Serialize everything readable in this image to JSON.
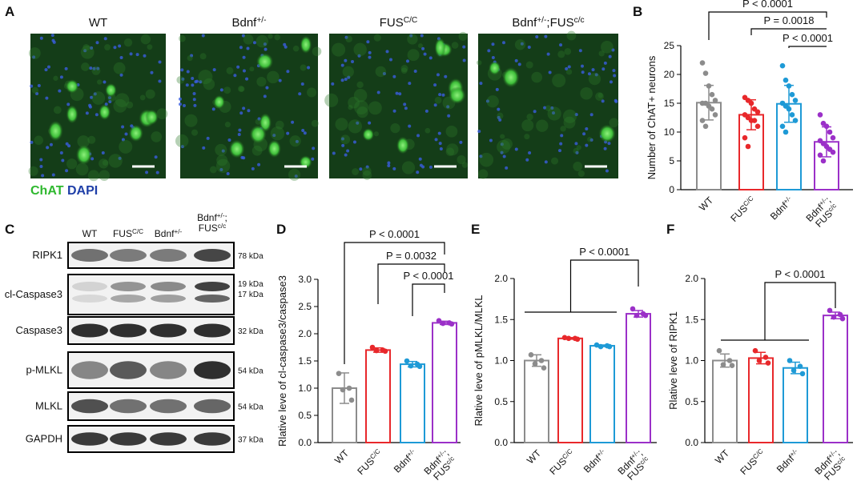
{
  "panels": {
    "letters": [
      "A",
      "B",
      "C",
      "D",
      "E",
      "F"
    ]
  },
  "micrographs": {
    "titles": [
      "WT",
      "Bdnf+/-",
      "FUSC/C",
      "Bdnf+/-;FUSc/c"
    ],
    "legend": [
      "ChAT",
      "DAPI"
    ]
  },
  "blot": {
    "columns": [
      "WT",
      "FUSC/C",
      "Bdnf+/-",
      "Bdnf+/-;FUSc/c"
    ],
    "rows": [
      {
        "name": "RIPK1",
        "sizes": [
          "78 kDa"
        ]
      },
      {
        "name": "cl-Caspase3",
        "sizes": [
          "19 kDa",
          "17 kDa"
        ]
      },
      {
        "name": "Caspase3",
        "sizes": [
          "32 kDa"
        ]
      },
      {
        "name": "p-MLKL",
        "sizes": [
          "54 kDa"
        ]
      },
      {
        "name": "MLKL",
        "sizes": [
          "54 kDa"
        ]
      },
      {
        "name": "GAPDH",
        "sizes": [
          "37 kDa"
        ]
      }
    ]
  },
  "chart_data": [
    {
      "type": "bar",
      "y_label": "Number of ChAT+ neurons",
      "categories": [
        "WT",
        "FUSC/C",
        "Bdnf+/-",
        "Bdnf+/-;FUSc/c"
      ],
      "colors": [
        "#8c8c8c",
        "#e8282b",
        "#1e9ad6",
        "#9b30c8"
      ],
      "means": [
        15.1,
        13.0,
        14.9,
        8.3
      ],
      "errors": [
        3.0,
        2.6,
        3.2,
        2.6
      ],
      "points": [
        [
          22,
          20.2,
          18,
          16.5,
          15.5,
          15,
          15,
          14.5,
          14,
          13,
          12,
          11
        ],
        [
          16,
          15.5,
          15,
          14,
          13.5,
          13,
          12.5,
          12,
          12,
          11,
          9,
          7.5
        ],
        [
          21.5,
          19,
          18,
          16.5,
          15.5,
          15,
          14.5,
          14,
          13,
          12,
          11,
          10
        ],
        [
          13,
          11.5,
          11,
          10,
          9,
          8.5,
          8,
          7.5,
          7,
          6.5,
          6,
          5
        ]
      ],
      "ylim": [
        0,
        25
      ],
      "yticks": [
        0,
        5,
        10,
        15,
        20,
        25
      ],
      "annotations": [
        "P < 0.0001",
        "P = 0.0018",
        "P < 0.0001"
      ]
    },
    {
      "type": "bar",
      "y_label": "Rlative leve of cl-caspase3/caspase3",
      "categories": [
        "WT",
        "FUSC/C",
        "Bdnf+/-",
        "Bdnf+/-;FUSc/c"
      ],
      "colors": [
        "#8c8c8c",
        "#e8282b",
        "#1e9ad6",
        "#9b30c8"
      ],
      "means": [
        1.0,
        1.7,
        1.44,
        2.2
      ],
      "errors": [
        0.28,
        0.04,
        0.05,
        0.03
      ],
      "points": [
        [
          1.27,
          1.0,
          0.97,
          0.78
        ],
        [
          1.75,
          1.7,
          1.69,
          1.68
        ],
        [
          1.5,
          1.44,
          1.41,
          1.4
        ],
        [
          2.24,
          2.2,
          2.19,
          2.18
        ]
      ],
      "ylim": [
        0,
        3
      ],
      "yticks": [
        {
          "value": 0,
          "label": "0.0"
        },
        {
          "value": 0.5,
          "label": "0.5"
        },
        {
          "value": 1,
          "label": "1.0"
        },
        {
          "value": 1.5,
          "label": "1.5"
        },
        {
          "value": 2,
          "label": "2.0"
        },
        {
          "value": 2.5,
          "label": "2.5"
        },
        {
          "value": 3,
          "label": "3.0"
        }
      ],
      "annotations": [
        "P < 0.0001",
        "P = 0.0032",
        "P < 0.0001"
      ]
    },
    {
      "type": "bar",
      "y_label": "Rlative leve of pMLKL/MLKL",
      "categories": [
        "WT",
        "FUSC/C",
        "Bdnf+/-",
        "Bdnf+/-;FUSc/c"
      ],
      "colors": [
        "#8c8c8c",
        "#e8282b",
        "#1e9ad6",
        "#9b30c8"
      ],
      "means": [
        1.0,
        1.27,
        1.18,
        1.57
      ],
      "errors": [
        0.07,
        0.01,
        0.01,
        0.04
      ],
      "points": [
        [
          1.07,
          1.0,
          0.96,
          0.91
        ],
        [
          1.28,
          1.27,
          1.27,
          1.26
        ],
        [
          1.19,
          1.18,
          1.17,
          1.17
        ],
        [
          1.63,
          1.57,
          1.55,
          1.55
        ]
      ],
      "ylim": [
        0,
        2
      ],
      "yticks": [
        {
          "value": 0,
          "label": "0.0"
        },
        {
          "value": 0.5,
          "label": "0.5"
        },
        {
          "value": 1,
          "label": "1.0"
        },
        {
          "value": 1.5,
          "label": "1.5"
        },
        {
          "value": 2,
          "label": "2.0"
        }
      ],
      "annotations": [
        "P < 0.0001"
      ]
    },
    {
      "type": "bar",
      "y_label": "Rlative leve of RIPK1",
      "categories": [
        "WT",
        "FUSC/C",
        "Bdnf+/-",
        "Bdnf+/-;FUSc/c"
      ],
      "colors": [
        "#8c8c8c",
        "#e8282b",
        "#1e9ad6",
        "#9b30c8"
      ],
      "means": [
        1.0,
        1.03,
        0.91,
        1.55
      ],
      "errors": [
        0.08,
        0.07,
        0.07,
        0.04
      ],
      "points": [
        [
          1.12,
          1.0,
          0.95,
          0.94
        ],
        [
          1.12,
          1.04,
          1.0,
          0.97
        ],
        [
          1.0,
          0.93,
          0.88,
          0.84
        ],
        [
          1.61,
          1.56,
          1.53,
          1.51
        ]
      ],
      "ylim": [
        0,
        2
      ],
      "yticks": [
        {
          "value": 0,
          "label": "0.0"
        },
        {
          "value": 0.5,
          "label": "0.5"
        },
        {
          "value": 1,
          "label": "1.0"
        },
        {
          "value": 1.5,
          "label": "1.5"
        },
        {
          "value": 2,
          "label": "2.0"
        }
      ],
      "annotations": [
        "P < 0.0001"
      ]
    }
  ]
}
